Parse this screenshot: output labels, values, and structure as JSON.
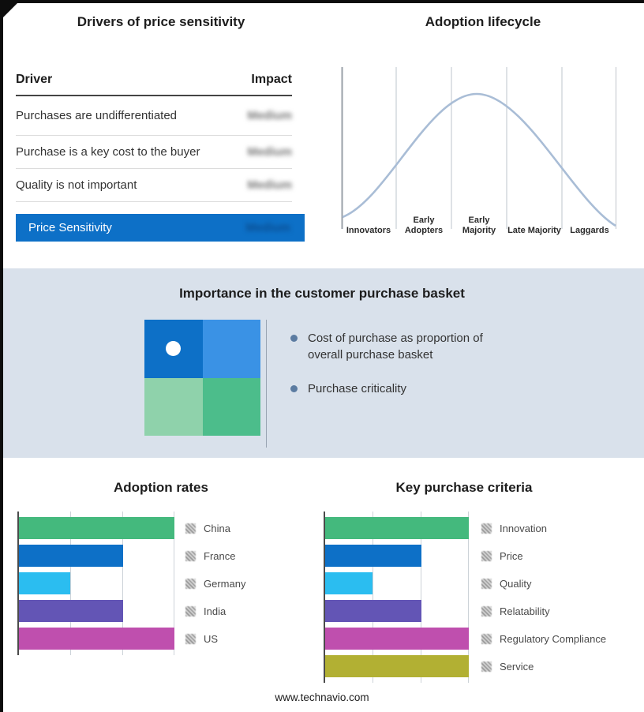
{
  "page": {
    "footer": "www.technavio.com"
  },
  "drivers": {
    "title": "Drivers of price sensitivity",
    "columns": {
      "driver": "Driver",
      "impact": "Impact"
    },
    "impact_blurred": true,
    "rows": [
      {
        "driver": "Purchases are undifferentiated",
        "impact": "Medium"
      },
      {
        "driver": "Purchase is a key cost to the buyer",
        "impact": "Medium"
      },
      {
        "driver": "Quality is not important",
        "impact": "Medium"
      }
    ],
    "highlight": {
      "driver": "Price Sensitivity",
      "impact": "Medium"
    },
    "highlight_color": "#0d70c7"
  },
  "basket": {
    "title": "Importance in the customer purchase basket",
    "bullets": [
      "Cost of purchase as proportion of overall purchase basket",
      "Purchase criticality"
    ],
    "quadrant_colors": [
      "#0d70c7",
      "#3a92e5",
      "#8fd2ab",
      "#4cbd8b"
    ],
    "dot": "white circle in top-left quadrant",
    "bullet_marker_color": "#5b7ba1",
    "band_background": "#d9e1eb"
  },
  "chart_data": [
    {
      "id": "adoption-lifecycle",
      "type": "line",
      "title": "Adoption lifecycle",
      "categories": [
        "Innovators",
        "Early Adopters",
        "Early Majority",
        "Late Majority",
        "Laggards"
      ],
      "shape": "bell curve peaking over Early Majority",
      "line_color": "#a9bdd6",
      "grid": "vertical dividers between stages, left axis line",
      "legend_position": "none"
    },
    {
      "id": "adoption-rates",
      "type": "bar",
      "title": "Adoption rates",
      "orientation": "horizontal",
      "categories": [
        "China",
        "France",
        "Germany",
        "India",
        "US"
      ],
      "values": [
        100,
        67,
        33,
        67,
        100
      ],
      "colors": [
        "#44b97d",
        "#0d70c7",
        "#2bbdf0",
        "#6355b5",
        "#bf4fae"
      ],
      "xlim": [
        0,
        100
      ],
      "grid": true,
      "legend_position": "right",
      "legend_swatch": "hatched-square"
    },
    {
      "id": "key-purchase-criteria",
      "type": "bar",
      "title": "Key purchase criteria",
      "orientation": "horizontal",
      "categories": [
        "Innovation",
        "Price",
        "Quality",
        "Relatability",
        "Regulatory Compliance",
        "Service"
      ],
      "values": [
        100,
        67,
        33,
        67,
        100,
        100
      ],
      "colors": [
        "#44b97d",
        "#0d70c7",
        "#2bbdf0",
        "#6355b5",
        "#bf4fae",
        "#b2b033"
      ],
      "xlim": [
        0,
        100
      ],
      "grid": true,
      "legend_position": "right",
      "legend_swatch": "hatched-square"
    }
  ]
}
